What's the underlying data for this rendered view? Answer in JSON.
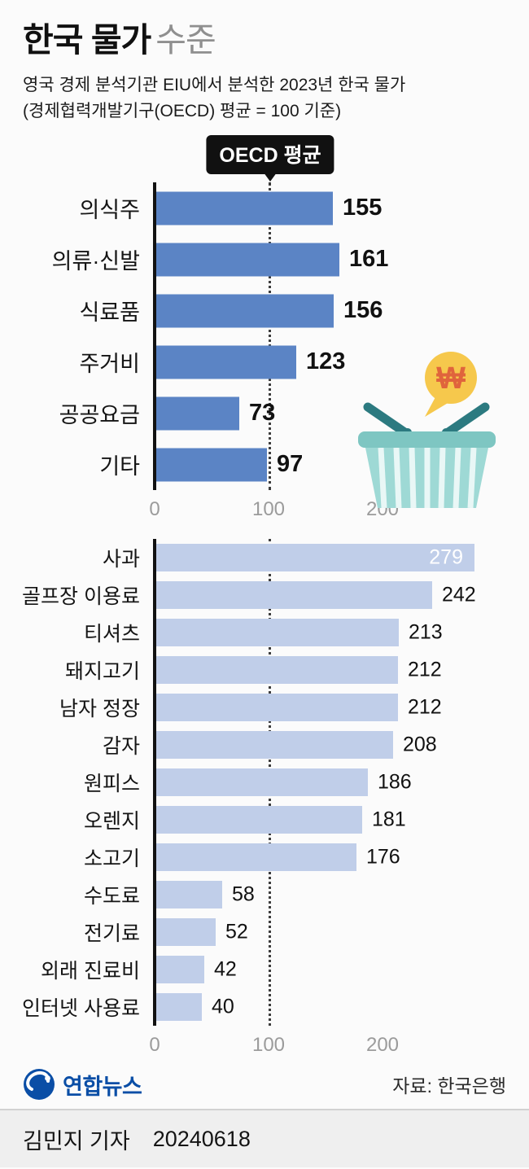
{
  "header": {
    "title_bold": "한국 물가",
    "title_light": "수준",
    "subtitle_line1": "영국 경제 분석기관 EIU에서 분석한 2023년 한국 물가",
    "subtitle_line2": "(경제협력개발기구(OECD) 평균 = 100 기준)"
  },
  "oecd_badge_label": "OECD 평균",
  "chart_data": [
    {
      "type": "bar",
      "orientation": "horizontal",
      "categories": [
        "의식주",
        "의류·신발",
        "식료품",
        "주거비",
        "공공요금",
        "기타"
      ],
      "values": [
        155,
        161,
        156,
        123,
        73,
        97
      ],
      "xlim": [
        0,
        200
      ],
      "x_ticks": [
        0,
        100,
        200
      ],
      "reference_line": 100,
      "reference_label": "OECD 평균",
      "bar_color": "#5b84c5",
      "grid": false
    },
    {
      "type": "bar",
      "orientation": "horizontal",
      "categories": [
        "사과",
        "골프장 이용료",
        "티셔츠",
        "돼지고기",
        "남자 정장",
        "감자",
        "원피스",
        "오렌지",
        "소고기",
        "수도료",
        "전기료",
        "외래 진료비",
        "인터넷 사용료"
      ],
      "values": [
        279,
        242,
        213,
        212,
        212,
        208,
        186,
        181,
        176,
        58,
        52,
        42,
        40
      ],
      "xlim": [
        0,
        200
      ],
      "x_ticks": [
        0,
        100,
        200
      ],
      "reference_line": 100,
      "reference_label": "OECD 평균",
      "bar_color": "#c0cee9",
      "grid": false
    }
  ],
  "basket": {
    "currency_symbol": "₩"
  },
  "footer": {
    "logo_text": "연합뉴스",
    "source": "자료: 한국은행",
    "reporter": "김민지 기자",
    "date": "20240618"
  },
  "colors": {
    "primary_bar": "#5b84c5",
    "secondary_bar": "#c0cee9",
    "badge_bg": "#111111",
    "brand_blue": "#0a4ea6",
    "basket_teal": "#9ed9d5",
    "basket_rim": "#7ec6c2",
    "handle_teal": "#2c7a80",
    "bubble_yellow": "#f6c84c",
    "won_orange": "#e0643c"
  }
}
